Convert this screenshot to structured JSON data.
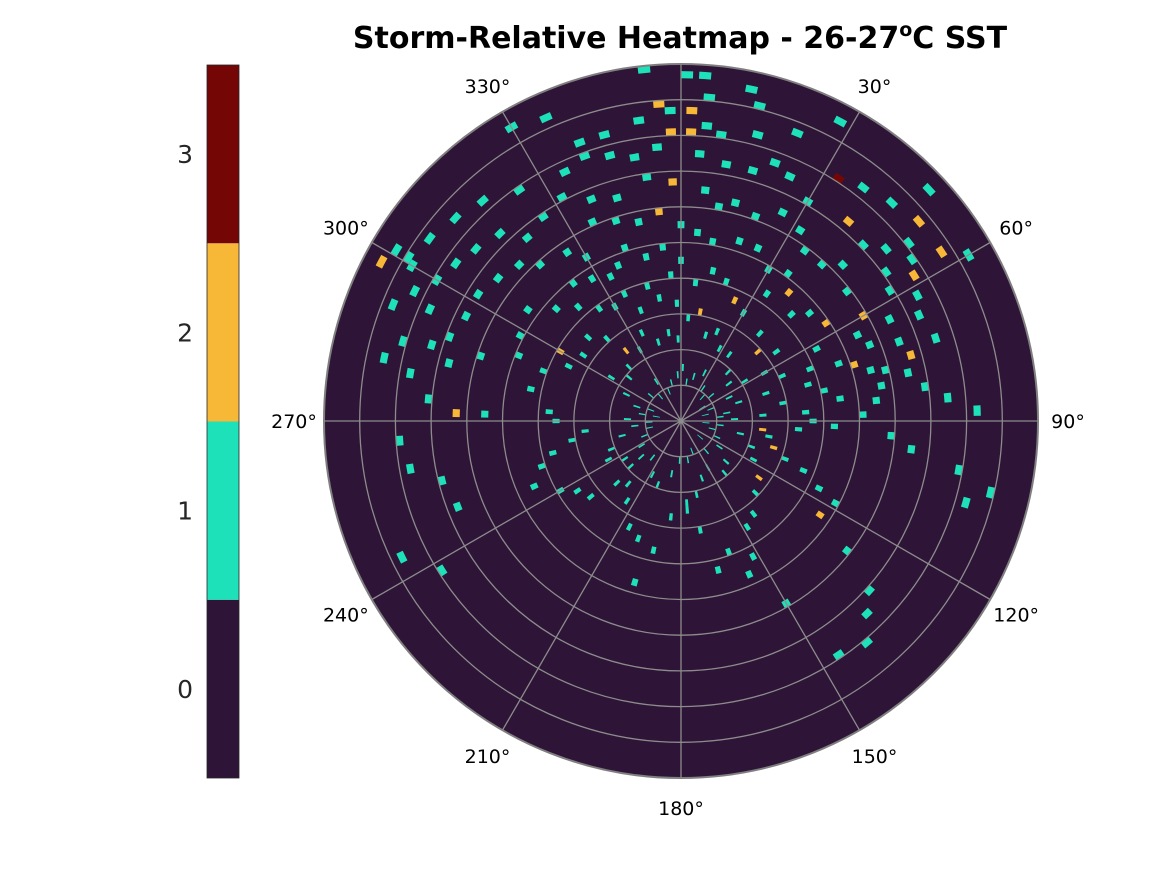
{
  "chart_data": {
    "type": "heatmap",
    "subtype": "polar",
    "title": {
      "prefix": "Storm-Relative Heatmap - 26-27",
      "sup": "o",
      "suffix": "C SST"
    },
    "angle_zero": "top",
    "angle_direction": "clockwise",
    "grid": true,
    "theta_ticks": [
      {
        "deg": 0,
        "label": ""
      },
      {
        "deg": 30,
        "label": "30°"
      },
      {
        "deg": 60,
        "label": "60°"
      },
      {
        "deg": 90,
        "label": "90°"
      },
      {
        "deg": 120,
        "label": "120°"
      },
      {
        "deg": 150,
        "label": "150°"
      },
      {
        "deg": 180,
        "label": "180°"
      },
      {
        "deg": 210,
        "label": "210°"
      },
      {
        "deg": 240,
        "label": "240°"
      },
      {
        "deg": 270,
        "label": "270°"
      },
      {
        "deg": 300,
        "label": "300°"
      },
      {
        "deg": 330,
        "label": "330°"
      }
    ],
    "r_range": [
      0,
      50
    ],
    "r_gridlines": [
      5,
      10,
      15,
      20,
      25,
      30,
      35,
      40,
      45,
      50
    ],
    "background_value": 0,
    "colorbar": {
      "position": "left",
      "range": [
        -0.5,
        3.5
      ],
      "levels": [
        {
          "value": 0,
          "color": "#2e1437",
          "label": "0"
        },
        {
          "value": 1,
          "color": "#1de2b9",
          "label": "1"
        },
        {
          "value": 2,
          "color": "#f7b737",
          "label": "2"
        },
        {
          "value": 3,
          "color": "#750606",
          "label": "3"
        }
      ]
    },
    "cells_note": "Each cell: [theta_deg, r, value]; radial bin width 1, angular bin width 2 degrees.",
    "cells": [
      [
        354,
        50,
        1
      ],
      [
        1,
        49,
        1
      ],
      [
        4,
        49,
        1
      ],
      [
        12,
        48,
        1
      ],
      [
        28,
        48,
        1
      ],
      [
        47,
        48,
        1
      ],
      [
        60,
        47,
        1
      ],
      [
        330,
        48,
        1
      ],
      [
        336,
        47,
        1
      ],
      [
        301,
        47,
        1
      ],
      [
        298,
        48,
        2
      ],
      [
        301,
        45,
        1
      ],
      [
        300,
        44,
        1
      ],
      [
        5,
        46,
        1
      ],
      [
        14,
        46,
        1
      ],
      [
        356,
        45,
        2
      ],
      [
        358,
        44,
        1
      ],
      [
        2,
        44,
        2
      ],
      [
        352,
        43,
        1
      ],
      [
        345,
        42,
        1
      ],
      [
        340,
        42,
        1
      ],
      [
        5,
        42,
        1
      ],
      [
        8,
        41,
        1
      ],
      [
        15,
        42,
        1
      ],
      [
        22,
        44,
        1
      ],
      [
        33,
        41,
        3
      ],
      [
        38,
        42,
        1
      ],
      [
        44,
        43,
        1
      ],
      [
        50,
        44,
        2
      ],
      [
        57,
        44,
        2
      ],
      [
        52,
        41,
        1
      ],
      [
        62,
        38,
        1
      ],
      [
        58,
        39,
        2
      ],
      [
        55,
        40,
        1
      ],
      [
        358,
        41,
        2
      ],
      [
        2,
        41,
        2
      ],
      [
        355,
        39,
        1
      ],
      [
        350,
        38,
        1
      ],
      [
        345,
        39,
        1
      ],
      [
        340,
        40,
        1
      ],
      [
        335,
        39,
        1
      ],
      [
        325,
        40,
        1
      ],
      [
        318,
        42,
        1
      ],
      [
        312,
        43,
        1
      ],
      [
        306,
        44,
        1
      ],
      [
        296,
        42,
        1
      ],
      [
        292,
        44,
        1
      ],
      [
        286,
        41,
        1
      ],
      [
        282,
        43,
        1
      ],
      [
        4,
        38,
        1
      ],
      [
        10,
        37,
        1
      ],
      [
        16,
        37,
        1
      ],
      [
        20,
        39,
        1
      ],
      [
        24,
        38,
        1
      ],
      [
        30,
        36,
        1
      ],
      [
        40,
        37,
        2
      ],
      [
        46,
        36,
        1
      ],
      [
        50,
        38,
        1
      ],
      [
        54,
        36,
        1
      ],
      [
        58,
        35,
        1
      ],
      [
        64,
        33,
        1
      ],
      [
        66,
        37,
        1
      ],
      [
        70,
        33,
        1
      ],
      [
        72,
        38,
        1
      ],
      [
        76,
        30,
        1
      ],
      [
        74,
        34,
        2
      ],
      [
        78,
        33,
        1
      ],
      [
        82,
        35,
        1
      ],
      [
        85,
        38,
        1
      ],
      [
        88,
        42,
        1
      ],
      [
        358,
        34,
        2
      ],
      [
        352,
        35,
        1
      ],
      [
        344,
        33,
        1
      ],
      [
        338,
        34,
        1
      ],
      [
        332,
        36,
        1
      ],
      [
        326,
        35,
        1
      ],
      [
        320,
        34,
        1
      ],
      [
        316,
        37,
        1
      ],
      [
        310,
        38,
        1
      ],
      [
        305,
        39,
        1
      ],
      [
        300,
        40,
        1
      ],
      [
        294,
        39,
        1
      ],
      [
        287,
        37,
        1
      ],
      [
        280,
        39,
        1
      ],
      [
        275,
        36,
        1
      ],
      [
        272,
        32,
        2
      ],
      [
        6,
        33,
        1
      ],
      [
        10,
        31,
        1
      ],
      [
        14,
        32,
        1
      ],
      [
        20,
        31,
        1
      ],
      [
        26,
        33,
        1
      ],
      [
        32,
        32,
        1
      ],
      [
        36,
        30,
        1
      ],
      [
        42,
        30,
        1
      ],
      [
        46,
        32,
        1
      ],
      [
        52,
        30,
        1
      ],
      [
        60,
        30,
        2
      ],
      [
        64,
        28,
        1
      ],
      [
        68,
        29,
        1
      ],
      [
        70,
        24,
        1
      ],
      [
        72,
        26,
        2
      ],
      [
        75,
        28,
        1
      ],
      [
        80,
        29,
        1
      ],
      [
        84,
        28,
        1
      ],
      [
        88,
        26,
        1
      ],
      [
        92,
        22,
        1
      ],
      [
        94,
        30,
        1
      ],
      [
        97,
        33,
        1
      ],
      [
        100,
        40,
        1
      ],
      [
        103,
        45,
        1
      ],
      [
        106,
        42,
        1
      ],
      [
        354,
        30,
        2
      ],
      [
        348,
        29,
        1
      ],
      [
        342,
        30,
        1
      ],
      [
        336,
        31,
        1
      ],
      [
        330,
        27,
        1
      ],
      [
        326,
        29,
        1
      ],
      [
        318,
        30,
        1
      ],
      [
        314,
        32,
        1
      ],
      [
        308,
        33,
        1
      ],
      [
        302,
        34,
        1
      ],
      [
        296,
        34,
        1
      ],
      [
        290,
        35,
        1
      ],
      [
        284,
        34,
        1
      ],
      [
        266,
        40,
        1
      ],
      [
        260,
        39,
        1
      ],
      [
        256,
        35,
        1
      ],
      [
        249,
        34,
        1
      ],
      [
        244,
        44,
        1
      ],
      [
        238,
        40,
        1
      ],
      [
        0,
        28,
        1
      ],
      [
        5,
        27,
        1
      ],
      [
        10,
        26,
        1
      ],
      [
        18,
        27,
        1
      ],
      [
        24,
        27,
        1
      ],
      [
        30,
        25,
        1
      ],
      [
        36,
        26,
        1
      ],
      [
        40,
        24,
        2
      ],
      [
        46,
        22,
        1
      ],
      [
        50,
        24,
        1
      ],
      [
        56,
        25,
        2
      ],
      [
        62,
        22,
        1
      ],
      [
        68,
        20,
        1
      ],
      [
        74,
        19,
        1
      ],
      [
        78,
        21,
        1
      ],
      [
        82,
        23,
        1
      ],
      [
        86,
        18,
        1
      ],
      [
        90,
        19,
        1
      ],
      [
        94,
        17,
        1
      ],
      [
        354,
        25,
        1
      ],
      [
        348,
        24,
        1
      ],
      [
        342,
        26,
        1
      ],
      [
        338,
        24,
        1
      ],
      [
        334,
        23,
        1
      ],
      [
        328,
        24,
        1
      ],
      [
        322,
        25,
        1
      ],
      [
        318,
        22,
        1
      ],
      [
        312,
        24,
        1
      ],
      [
        306,
        27,
        1
      ],
      [
        298,
        26,
        1
      ],
      [
        292,
        25,
        1
      ],
      [
        288,
        30,
        1
      ],
      [
        0,
        23,
        1
      ],
      [
        6,
        20,
        1
      ],
      [
        12,
        22,
        1
      ],
      [
        18,
        21,
        1
      ],
      [
        24,
        19,
        2
      ],
      [
        30,
        18,
        1
      ],
      [
        34,
        22,
        1
      ],
      [
        42,
        17,
        1
      ],
      [
        48,
        15,
        2
      ],
      [
        54,
        17,
        1
      ],
      [
        60,
        14,
        1
      ],
      [
        66,
        16,
        1
      ],
      [
        72,
        13,
        1
      ],
      [
        80,
        15,
        1
      ],
      [
        86,
        12,
        1
      ],
      [
        96,
        12,
        2
      ],
      [
        100,
        13,
        1
      ],
      [
        106,
        14,
        2
      ],
      [
        110,
        16,
        1
      ],
      [
        112,
        19,
        1
      ],
      [
        116,
        22,
        1
      ],
      [
        118,
        25,
        1
      ],
      [
        124,
        24,
        2
      ],
      [
        128,
        30,
        1
      ],
      [
        132,
        36,
        1
      ],
      [
        136,
        38,
        1
      ],
      [
        140,
        41,
        1
      ],
      [
        146,
        40,
        1
      ],
      [
        150,
        30,
        1
      ],
      [
        356,
        21,
        1
      ],
      [
        350,
        18,
        1
      ],
      [
        346,
        20,
        1
      ],
      [
        340,
        17,
        1
      ],
      [
        336,
        20,
        1
      ],
      [
        330,
        19,
        1
      ],
      [
        324,
        20,
        1
      ],
      [
        318,
        16,
        1
      ],
      [
        312,
        18,
        1
      ],
      [
        304,
        17,
        1
      ],
      [
        300,
        20,
        2
      ],
      [
        296,
        18,
        1
      ],
      [
        290,
        21,
        1
      ],
      [
        282,
        22,
        1
      ],
      [
        274,
        19,
        1
      ],
      [
        272,
        28,
        1
      ],
      [
        270,
        18,
        1
      ],
      [
        264,
        14,
        1
      ],
      [
        260,
        16,
        1
      ],
      [
        256,
        19,
        1
      ],
      [
        252,
        21,
        1
      ],
      [
        246,
        23,
        1
      ],
      [
        240,
        20,
        1
      ],
      [
        236,
        18,
        1
      ],
      [
        230,
        17,
        1
      ],
      [
        226,
        13,
        1
      ],
      [
        358,
        17,
        1
      ],
      [
        4,
        15,
        1
      ],
      [
        10,
        16,
        2
      ],
      [
        16,
        13,
        1
      ],
      [
        22,
        14,
        1
      ],
      [
        28,
        12,
        1
      ],
      [
        36,
        12,
        1
      ],
      [
        44,
        10,
        1
      ],
      [
        52,
        9,
        1
      ],
      [
        58,
        11,
        1
      ],
      [
        64,
        8,
        1
      ],
      [
        72,
        9,
        1
      ],
      [
        80,
        7,
        1
      ],
      [
        88,
        8,
        1
      ],
      [
        96,
        6,
        1
      ],
      [
        102,
        9,
        1
      ],
      [
        110,
        11,
        1
      ],
      [
        118,
        12,
        1
      ],
      [
        126,
        14,
        2
      ],
      [
        134,
        15,
        1
      ],
      [
        142,
        17,
        1
      ],
      [
        148,
        18,
        1
      ],
      [
        152,
        22,
        1
      ],
      [
        156,
        24,
        1
      ],
      [
        160,
        20,
        1
      ],
      [
        166,
        22,
        1
      ],
      [
        170,
        16,
        1
      ],
      [
        176,
        12,
        1
      ],
      [
        358,
        12,
        1
      ],
      [
        352,
        13,
        1
      ],
      [
        344,
        12,
        1
      ],
      [
        336,
        14,
        1
      ],
      [
        330,
        12,
        1
      ],
      [
        322,
        13,
        2
      ],
      [
        316,
        11,
        1
      ],
      [
        310,
        10,
        1
      ],
      [
        302,
        12,
        1
      ],
      [
        296,
        9,
        1
      ],
      [
        288,
        7,
        1
      ],
      [
        280,
        6,
        1
      ],
      [
        272,
        8,
        1
      ],
      [
        264,
        7,
        1
      ],
      [
        256,
        9,
        1
      ],
      [
        248,
        11,
        1
      ],
      [
        242,
        12,
        1
      ],
      [
        236,
        10,
        1
      ],
      [
        228,
        10,
        1
      ],
      [
        220,
        12,
        1
      ],
      [
        214,
        14,
        1
      ],
      [
        206,
        17,
        1
      ],
      [
        200,
        18,
        1
      ],
      [
        196,
        24,
        1
      ],
      [
        192,
        19,
        1
      ],
      [
        186,
        14,
        1
      ],
      [
        2,
        8,
        1
      ],
      [
        8,
        6,
        1
      ],
      [
        16,
        7,
        1
      ],
      [
        26,
        8,
        1
      ],
      [
        34,
        6,
        1
      ],
      [
        42,
        5,
        1
      ],
      [
        50,
        6,
        1
      ],
      [
        58,
        4,
        1
      ],
      [
        68,
        5,
        1
      ],
      [
        76,
        4,
        1
      ],
      [
        84,
        6,
        1
      ],
      [
        94,
        4,
        1
      ],
      [
        104,
        5,
        1
      ],
      [
        114,
        6,
        1
      ],
      [
        124,
        7,
        1
      ],
      [
        132,
        9,
        1
      ],
      [
        140,
        10,
        1
      ],
      [
        150,
        8,
        1
      ],
      [
        160,
        9,
        1
      ],
      [
        168,
        11,
        1
      ],
      [
        176,
        13,
        1
      ],
      [
        356,
        7,
        1
      ],
      [
        346,
        6,
        1
      ],
      [
        338,
        5,
        1
      ],
      [
        328,
        7,
        1
      ],
      [
        320,
        5,
        1
      ],
      [
        310,
        6,
        1
      ],
      [
        300,
        4,
        1
      ],
      [
        290,
        5,
        1
      ],
      [
        280,
        4,
        1
      ],
      [
        268,
        5,
        1
      ],
      [
        258,
        5,
        1
      ],
      [
        248,
        6,
        1
      ],
      [
        238,
        7,
        1
      ],
      [
        228,
        8,
        1
      ],
      [
        218,
        7,
        1
      ],
      [
        208,
        9,
        1
      ],
      [
        200,
        10,
        1
      ],
      [
        190,
        8,
        1
      ],
      [
        182,
        6,
        1
      ],
      [
        170,
        6,
        1
      ],
      [
        160,
        5,
        1
      ],
      [
        150,
        5,
        1
      ],
      [
        140,
        6,
        1
      ],
      [
        130,
        4,
        1
      ]
    ]
  }
}
